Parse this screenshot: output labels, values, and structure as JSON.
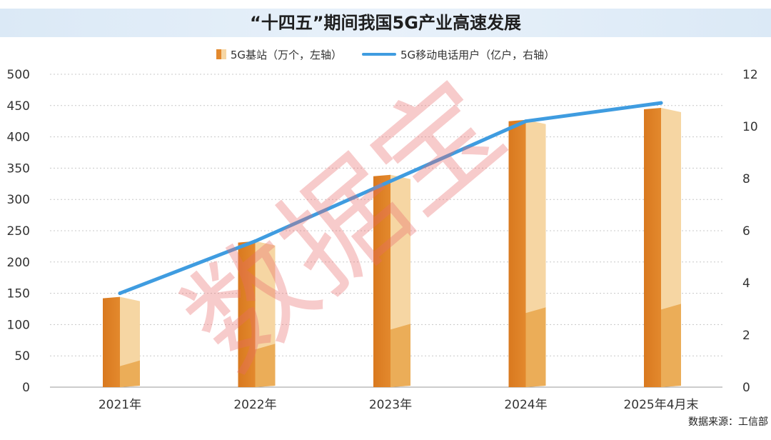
{
  "title": "“十四五”期间我国5G产业高速发展",
  "source": "数据来源：工信部",
  "watermark": "数据宝",
  "colors": {
    "bar_dark": "#e3892d",
    "bar_light": "#f6d6a3",
    "bar_bottom_light": "#ebad58",
    "line": "#3f9ce0",
    "grid": "#c8c8c8",
    "watermark": "#e86a6a",
    "title_band": "#dbe9f6"
  },
  "chart_data": {
    "type": "bar",
    "categories": [
      "2021年",
      "2022年",
      "2023年",
      "2024年",
      "2025年4月末"
    ],
    "series": [
      {
        "name": "5G基站（万个，左轴）",
        "type": "bar",
        "axis": "left",
        "values": [
          142,
          231,
          337,
          425,
          444
        ]
      },
      {
        "name": "5G移动电话用户（亿户，右轴）",
        "type": "line",
        "axis": "right",
        "values": [
          3.6,
          5.6,
          7.9,
          10.2,
          10.9
        ]
      }
    ],
    "y_left": {
      "range": [
        0,
        500
      ],
      "ticks": [
        0,
        50,
        100,
        150,
        200,
        250,
        300,
        350,
        400,
        450,
        500
      ]
    },
    "y_right": {
      "range": [
        0,
        12
      ],
      "ticks": [
        0,
        2,
        4,
        6,
        8,
        10,
        12
      ]
    },
    "grid": true,
    "grid_style": "dotted-horizontal",
    "legend_position": "top-center"
  }
}
